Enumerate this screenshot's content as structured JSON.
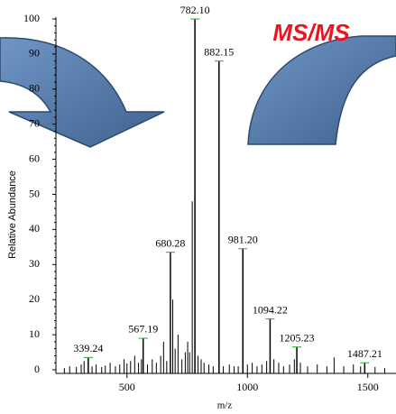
{
  "chart_data": {
    "type": "spectrum",
    "annotation": "MS/MS",
    "x_label": "m/z",
    "y_label": "Relative Abundance",
    "xlim": [
      205,
      1617
    ],
    "xticks": [
      500,
      1000,
      1500
    ],
    "ylim": [
      0,
      100
    ],
    "yticks": [
      0,
      10,
      20,
      30,
      40,
      50,
      60,
      70,
      80,
      90,
      100
    ],
    "color": "#000000",
    "label_marker_color": "#22aa22",
    "labeled_peaks": {
      "x": [
        339.24,
        567.19,
        680.28,
        782.1,
        882.15,
        981.2,
        1094.22,
        1205.23,
        1487.21
      ],
      "x_labels": [
        "339.24",
        "567.19",
        "680.28",
        "782.10",
        "882.15",
        "981.20",
        "1094.22",
        "1205.23",
        "1487.21"
      ],
      "values": [
        3.5,
        9,
        33.5,
        100,
        88,
        34.5,
        14.5,
        6.5,
        2
      ]
    },
    "other_peaks": {
      "x": [
        240,
        262,
        290,
        310,
        322,
        355,
        372,
        395,
        410,
        430,
        452,
        470,
        488,
        500,
        515,
        532,
        548,
        560,
        585,
        605,
        622,
        640,
        652,
        665,
        690,
        700,
        712,
        728,
        742,
        752,
        760,
        771,
        795,
        808,
        820,
        840,
        858,
        900,
        925,
        945,
        962,
        1000,
        1020,
        1040,
        1060,
        1080,
        1110,
        1130,
        1150,
        1175,
        1195,
        1220,
        1250,
        1290,
        1330,
        1360,
        1400,
        1440,
        1470,
        1530,
        1570
      ],
      "values": [
        0.5,
        1,
        0.8,
        1.5,
        2.5,
        1,
        1.5,
        0.8,
        1.2,
        2,
        1,
        1.5,
        3,
        1.8,
        2.5,
        4,
        2,
        3,
        1.5,
        3,
        2,
        4,
        8,
        2.5,
        20,
        6,
        10,
        3,
        5,
        8,
        5,
        48,
        4,
        3,
        2,
        1.5,
        1,
        1,
        1.5,
        1,
        1,
        1.5,
        2,
        1,
        1.5,
        2.5,
        3,
        2,
        1,
        1.5,
        3,
        2,
        1,
        1.5,
        1,
        3.5,
        1,
        1.5,
        1,
        0.8,
        0.5
      ]
    }
  }
}
